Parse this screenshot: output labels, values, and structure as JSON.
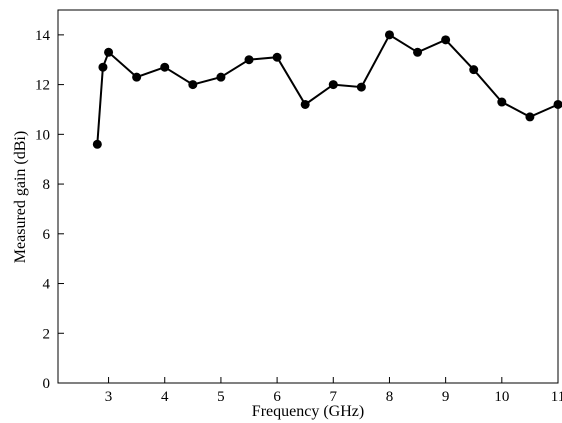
{
  "chart_data": {
    "type": "line",
    "title": "",
    "xlabel": "Frequency (GHz)",
    "ylabel": "Measured gain (dBi)",
    "xlim": [
      2.1,
      11
    ],
    "ylim": [
      0,
      15
    ],
    "xticks": [
      3,
      4,
      5,
      6,
      7,
      8,
      9,
      10,
      11
    ],
    "yticks": [
      0,
      2,
      4,
      6,
      8,
      10,
      12,
      14
    ],
    "grid": false,
    "legend": "none",
    "series": [
      {
        "color": "#000000",
        "marker": "circle",
        "x": [
          2.8,
          2.9,
          3.0,
          3.5,
          4.0,
          4.5,
          5.0,
          5.5,
          6.0,
          6.5,
          7.0,
          7.5,
          8.0,
          8.5,
          9.0,
          9.5,
          10.0,
          10.5,
          11.0
        ],
        "y": [
          9.6,
          12.7,
          13.3,
          12.3,
          12.7,
          12.0,
          12.3,
          13.0,
          13.1,
          11.2,
          12.0,
          11.9,
          14.0,
          13.3,
          13.8,
          12.6,
          11.3,
          10.7,
          11.2
        ]
      }
    ]
  }
}
